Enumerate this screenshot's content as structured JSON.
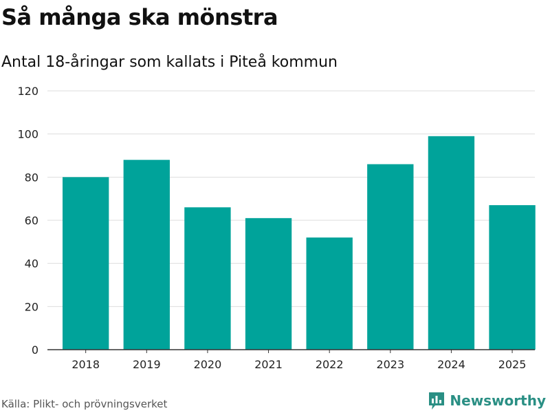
{
  "header": {
    "title": "Så många ska mönstra",
    "subtitle": "Antal 18-åringar som kallats i Piteå kommun"
  },
  "footer": {
    "source": "Källa: Plikt- och prövningsverket",
    "brand": "Newsworthy"
  },
  "colors": {
    "bar": "#00a39a",
    "brand": "#2a8f84",
    "grid": "#dddddd",
    "axis": "#333333"
  },
  "chart_data": {
    "type": "bar",
    "categories": [
      "2018",
      "2019",
      "2020",
      "2021",
      "2022",
      "2023",
      "2024",
      "2025"
    ],
    "values": [
      80,
      88,
      66,
      61,
      52,
      86,
      99,
      67
    ],
    "ylim": [
      0,
      120
    ],
    "yticks": [
      0,
      20,
      40,
      60,
      80,
      100,
      120
    ],
    "xlabel": "",
    "ylabel": "",
    "grid": true,
    "legend": "none"
  }
}
